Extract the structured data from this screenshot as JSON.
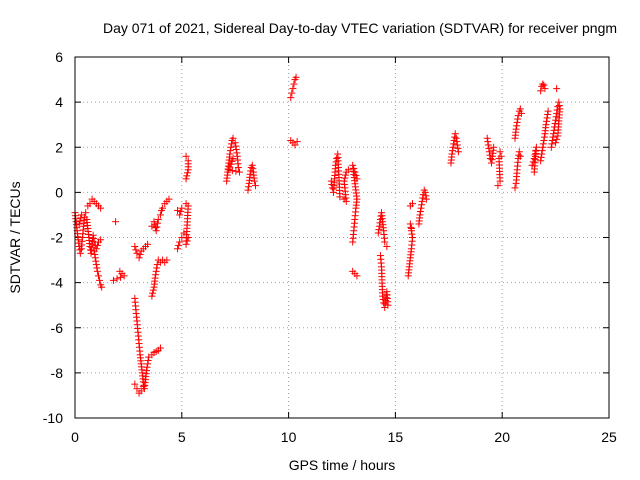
{
  "chart_data": {
    "type": "scatter",
    "title": "Day 071 of 2021, Sidereal Day-to-day VTEC variation (SDTVAR) for receiver pngm",
    "xlabel": "GPS time / hours",
    "ylabel": "SDTVAR / TECUs",
    "xlim": [
      0,
      25
    ],
    "ylim": [
      -10,
      6
    ],
    "x_ticks": [
      "0",
      "5",
      "10",
      "15",
      "20",
      "25"
    ],
    "y_ticks": [
      "-10",
      "-8",
      "-6",
      "-4",
      "-2",
      "0",
      "2",
      "4",
      "6"
    ],
    "grid": true,
    "marker": "+",
    "color": "#ff0000",
    "segments": [
      {
        "name": "arc-1",
        "points": [
          [
            0.0,
            -0.9
          ],
          [
            0.05,
            -1.3
          ],
          [
            0.1,
            -1.7
          ],
          [
            0.15,
            -2.1
          ],
          [
            0.2,
            -2.4
          ],
          [
            0.25,
            -2.7
          ],
          [
            0.3,
            -2.5
          ],
          [
            0.35,
            -2.0
          ],
          [
            0.4,
            -1.5
          ],
          [
            0.45,
            -1.1
          ],
          [
            0.5,
            -0.9
          ],
          [
            0.3,
            -1.0
          ],
          [
            0.2,
            -1.4
          ]
        ]
      },
      {
        "name": "arc-2",
        "points": [
          [
            0.55,
            -1.2
          ],
          [
            0.6,
            -1.6
          ],
          [
            0.65,
            -2.0
          ],
          [
            0.7,
            -2.4
          ],
          [
            0.75,
            -2.7
          ],
          [
            0.8,
            -2.3
          ],
          [
            0.85,
            -1.9
          ],
          [
            0.9,
            -2.2
          ],
          [
            1.0,
            -2.5
          ],
          [
            1.1,
            -2.2
          ],
          [
            1.2,
            -2.1
          ]
        ]
      },
      {
        "name": "arc-3",
        "points": [
          [
            0.6,
            -0.6
          ],
          [
            0.7,
            -0.5
          ],
          [
            0.8,
            -0.3
          ],
          [
            0.9,
            -0.4
          ],
          [
            1.0,
            -0.5
          ],
          [
            1.1,
            -0.6
          ],
          [
            1.2,
            -0.7
          ]
        ]
      },
      {
        "name": "arc-4",
        "points": [
          [
            0.9,
            -2.6
          ],
          [
            0.95,
            -2.9
          ],
          [
            1.0,
            -3.2
          ],
          [
            1.05,
            -3.5
          ],
          [
            1.1,
            -3.7
          ],
          [
            1.15,
            -3.9
          ],
          [
            1.2,
            -4.1
          ],
          [
            1.25,
            -4.2
          ]
        ]
      },
      {
        "name": "arc-5",
        "points": [
          [
            1.9,
            -1.3
          ],
          [
            2.1,
            -3.5
          ],
          [
            2.2,
            -3.6
          ],
          [
            2.3,
            -3.7
          ],
          [
            1.8,
            -3.9
          ]
        ]
      },
      {
        "name": "arc-6",
        "points": [
          [
            2.8,
            -2.4
          ],
          [
            2.9,
            -2.7
          ],
          [
            3.0,
            -2.9
          ],
          [
            3.1,
            -2.6
          ],
          [
            3.2,
            -2.5
          ],
          [
            3.3,
            -2.4
          ],
          [
            3.4,
            -2.3
          ]
        ]
      },
      {
        "name": "arc-7",
        "points": [
          [
            2.8,
            -4.7
          ],
          [
            2.85,
            -5.2
          ],
          [
            2.9,
            -5.7
          ],
          [
            2.95,
            -6.2
          ],
          [
            3.0,
            -6.7
          ],
          [
            3.05,
            -7.2
          ],
          [
            3.1,
            -7.6
          ],
          [
            3.15,
            -8.0
          ],
          [
            3.2,
            -8.4
          ],
          [
            3.25,
            -8.7
          ],
          [
            3.3,
            -8.3
          ],
          [
            3.35,
            -7.9
          ],
          [
            3.4,
            -7.6
          ],
          [
            3.45,
            -7.3
          ]
        ]
      },
      {
        "name": "arc-8",
        "points": [
          [
            2.8,
            -8.5
          ],
          [
            2.9,
            -8.7
          ],
          [
            3.0,
            -8.9
          ],
          [
            3.1,
            -8.8
          ],
          [
            3.2,
            -8.6
          ]
        ]
      },
      {
        "name": "arc-9",
        "points": [
          [
            3.6,
            -4.6
          ],
          [
            3.7,
            -4.2
          ],
          [
            3.75,
            -3.8
          ],
          [
            3.8,
            -3.5
          ],
          [
            3.85,
            -3.2
          ],
          [
            3.9,
            -3.0
          ],
          [
            4.0,
            -3.1
          ],
          [
            4.1,
            -3.0
          ],
          [
            4.2,
            -3.1
          ],
          [
            4.3,
            -3.0
          ]
        ]
      },
      {
        "name": "arc-10",
        "points": [
          [
            3.6,
            -7.2
          ],
          [
            3.7,
            -7.1
          ],
          [
            3.8,
            -7.05
          ],
          [
            3.9,
            -7.0
          ],
          [
            4.0,
            -6.9
          ]
        ]
      },
      {
        "name": "arc-11",
        "points": [
          [
            3.6,
            -1.5
          ],
          [
            3.7,
            -1.3
          ],
          [
            3.8,
            -1.7
          ],
          [
            3.9,
            -1.2
          ],
          [
            4.0,
            -1.0
          ],
          [
            4.05,
            -0.8
          ],
          [
            4.1,
            -0.7
          ],
          [
            4.2,
            -0.5
          ],
          [
            4.3,
            -0.4
          ],
          [
            4.4,
            -0.3
          ]
        ]
      },
      {
        "name": "arc-12",
        "points": [
          [
            4.8,
            -0.8
          ],
          [
            4.9,
            -1.0
          ],
          [
            5.0,
            -0.7
          ],
          [
            4.8,
            -2.5
          ],
          [
            4.9,
            -2.2
          ],
          [
            5.0,
            -2.0
          ],
          [
            5.1,
            -1.8
          ]
        ]
      },
      {
        "name": "arc-13",
        "points": [
          [
            5.2,
            -0.5
          ],
          [
            5.3,
            -0.6
          ],
          [
            5.2,
            -2.3
          ],
          [
            5.3,
            -2.0
          ],
          [
            5.2,
            0.6
          ],
          [
            5.3,
            1.0
          ],
          [
            5.3,
            1.4
          ],
          [
            5.2,
            1.6
          ]
        ]
      },
      {
        "name": "arc-14",
        "points": [
          [
            7.1,
            0.5
          ],
          [
            7.15,
            0.9
          ],
          [
            7.2,
            1.3
          ],
          [
            7.25,
            1.7
          ],
          [
            7.3,
            2.0
          ],
          [
            7.35,
            2.3
          ],
          [
            7.4,
            2.4
          ],
          [
            7.5,
            2.2
          ],
          [
            7.6,
            1.6
          ],
          [
            7.65,
            1.1
          ],
          [
            7.7,
            0.9
          ],
          [
            7.2,
            1.0
          ],
          [
            7.4,
            1.5
          ]
        ]
      },
      {
        "name": "arc-15",
        "points": [
          [
            8.1,
            0.1
          ],
          [
            8.15,
            0.4
          ],
          [
            8.2,
            0.8
          ],
          [
            8.25,
            1.1
          ],
          [
            8.3,
            1.2
          ],
          [
            8.35,
            0.9
          ],
          [
            8.4,
            0.5
          ],
          [
            8.45,
            0.3
          ]
        ]
      },
      {
        "name": "arc-16",
        "points": [
          [
            10.1,
            4.2
          ],
          [
            10.15,
            4.4
          ],
          [
            10.2,
            4.6
          ],
          [
            10.25,
            4.8
          ],
          [
            10.3,
            5.0
          ],
          [
            10.35,
            5.1
          ]
        ]
      },
      {
        "name": "arc-17",
        "points": [
          [
            10.1,
            2.3
          ],
          [
            10.2,
            2.2
          ],
          [
            10.3,
            2.1
          ],
          [
            10.4,
            2.25
          ]
        ]
      },
      {
        "name": "arc-18",
        "points": [
          [
            12.0,
            0.5
          ],
          [
            12.05,
            0.2
          ],
          [
            12.1,
            0.0
          ],
          [
            12.15,
            0.6
          ],
          [
            12.2,
            1.2
          ],
          [
            12.25,
            1.5
          ],
          [
            12.3,
            1.7
          ],
          [
            12.35,
            0.8
          ],
          [
            12.4,
            -0.2
          ]
        ]
      },
      {
        "name": "arc-19",
        "points": [
          [
            12.6,
            -0.3
          ],
          [
            12.7,
            -0.4
          ],
          [
            12.6,
            0.5
          ],
          [
            12.7,
            0.9
          ],
          [
            12.8,
            1.0
          ]
        ]
      },
      {
        "name": "arc-20",
        "points": [
          [
            13.0,
            -2.2
          ],
          [
            13.05,
            -1.7
          ],
          [
            13.1,
            -1.2
          ],
          [
            13.15,
            -0.7
          ],
          [
            13.2,
            -0.3
          ],
          [
            13.0,
            1.2
          ],
          [
            13.1,
            0.9
          ],
          [
            13.2,
            0.6
          ]
        ]
      },
      {
        "name": "arc-21",
        "points": [
          [
            13.0,
            -3.5
          ],
          [
            13.1,
            -3.6
          ],
          [
            13.2,
            -3.7
          ]
        ]
      },
      {
        "name": "arc-22",
        "points": [
          [
            14.2,
            -1.8
          ],
          [
            14.25,
            -1.5
          ],
          [
            14.3,
            -1.2
          ],
          [
            14.35,
            -0.9
          ],
          [
            14.4,
            -1.3
          ],
          [
            14.45,
            -1.7
          ],
          [
            14.5,
            -2.2
          ],
          [
            14.6,
            -2.4
          ]
        ]
      },
      {
        "name": "arc-23",
        "points": [
          [
            14.3,
            -2.8
          ],
          [
            14.35,
            -3.3
          ],
          [
            14.4,
            -4.6
          ],
          [
            14.45,
            -4.9
          ],
          [
            14.5,
            -5.1
          ],
          [
            14.55,
            -4.8
          ],
          [
            14.6,
            -4.4
          ],
          [
            14.65,
            -5.0
          ]
        ]
      },
      {
        "name": "arc-24",
        "points": [
          [
            15.6,
            -3.7
          ],
          [
            15.65,
            -3.3
          ],
          [
            15.7,
            -2.9
          ],
          [
            15.75,
            -2.5
          ],
          [
            15.8,
            -2.0
          ],
          [
            15.7,
            -1.4
          ],
          [
            15.75,
            -1.6
          ]
        ]
      },
      {
        "name": "arc-25",
        "points": [
          [
            15.7,
            -0.6
          ],
          [
            15.8,
            -0.5
          ]
        ]
      },
      {
        "name": "arc-26",
        "points": [
          [
            16.1,
            -1.4
          ],
          [
            16.15,
            -1.0
          ],
          [
            16.2,
            -0.7
          ],
          [
            16.25,
            -0.4
          ],
          [
            16.3,
            -0.1
          ],
          [
            16.35,
            0.1
          ],
          [
            16.4,
            0.0
          ],
          [
            16.45,
            -0.3
          ]
        ]
      },
      {
        "name": "arc-27",
        "points": [
          [
            17.6,
            1.3
          ],
          [
            17.65,
            1.7
          ],
          [
            17.7,
            2.0
          ],
          [
            17.75,
            2.3
          ],
          [
            17.8,
            2.6
          ],
          [
            17.85,
            2.4
          ],
          [
            17.9,
            2.1
          ],
          [
            17.95,
            1.8
          ]
        ]
      },
      {
        "name": "arc-28",
        "points": [
          [
            19.3,
            2.4
          ],
          [
            19.35,
            2.1
          ],
          [
            19.4,
            1.8
          ],
          [
            19.45,
            1.5
          ],
          [
            19.5,
            1.3
          ],
          [
            19.55,
            1.6
          ],
          [
            19.6,
            2.0
          ]
        ]
      },
      {
        "name": "arc-29",
        "points": [
          [
            19.8,
            0.3
          ],
          [
            19.9,
            0.5
          ],
          [
            19.85,
            1.5
          ],
          [
            19.95,
            1.6
          ],
          [
            19.9,
            1.8
          ]
        ]
      },
      {
        "name": "arc-30",
        "points": [
          [
            20.6,
            0.2
          ],
          [
            20.65,
            0.4
          ],
          [
            20.7,
            1.0
          ],
          [
            20.75,
            1.5
          ],
          [
            20.8,
            1.8
          ],
          [
            20.85,
            1.6
          ]
        ]
      },
      {
        "name": "arc-31",
        "points": [
          [
            20.6,
            2.4
          ],
          [
            20.65,
            2.8
          ],
          [
            20.7,
            3.1
          ],
          [
            20.75,
            3.4
          ],
          [
            20.8,
            3.6
          ],
          [
            20.85,
            3.7
          ],
          [
            20.9,
            3.5
          ]
        ]
      },
      {
        "name": "arc-32",
        "points": [
          [
            21.4,
            1.2
          ],
          [
            21.5,
            1.5
          ],
          [
            21.6,
            2.0
          ],
          [
            21.5,
            0.9
          ]
        ]
      },
      {
        "name": "arc-33",
        "points": [
          [
            21.8,
            1.4
          ],
          [
            21.85,
            1.7
          ],
          [
            21.9,
            2.0
          ],
          [
            21.95,
            2.3
          ],
          [
            22.0,
            2.6
          ],
          [
            22.05,
            3.0
          ],
          [
            22.1,
            3.3
          ],
          [
            22.15,
            3.6
          ]
        ]
      },
      {
        "name": "arc-34",
        "points": [
          [
            21.8,
            4.5
          ],
          [
            21.85,
            4.7
          ],
          [
            21.9,
            4.8
          ],
          [
            21.95,
            4.75
          ],
          [
            22.0,
            4.6
          ]
        ]
      },
      {
        "name": "arc-35",
        "points": [
          [
            22.3,
            2.0
          ],
          [
            22.35,
            2.3
          ],
          [
            22.4,
            2.6
          ],
          [
            22.45,
            2.9
          ],
          [
            22.5,
            3.2
          ],
          [
            22.55,
            3.5
          ],
          [
            22.6,
            3.8
          ],
          [
            22.65,
            4.0
          ],
          [
            22.7,
            3.7
          ],
          [
            22.6,
            2.5
          ],
          [
            22.5,
            2.2
          ],
          [
            22.55,
            4.6
          ]
        ]
      }
    ]
  }
}
